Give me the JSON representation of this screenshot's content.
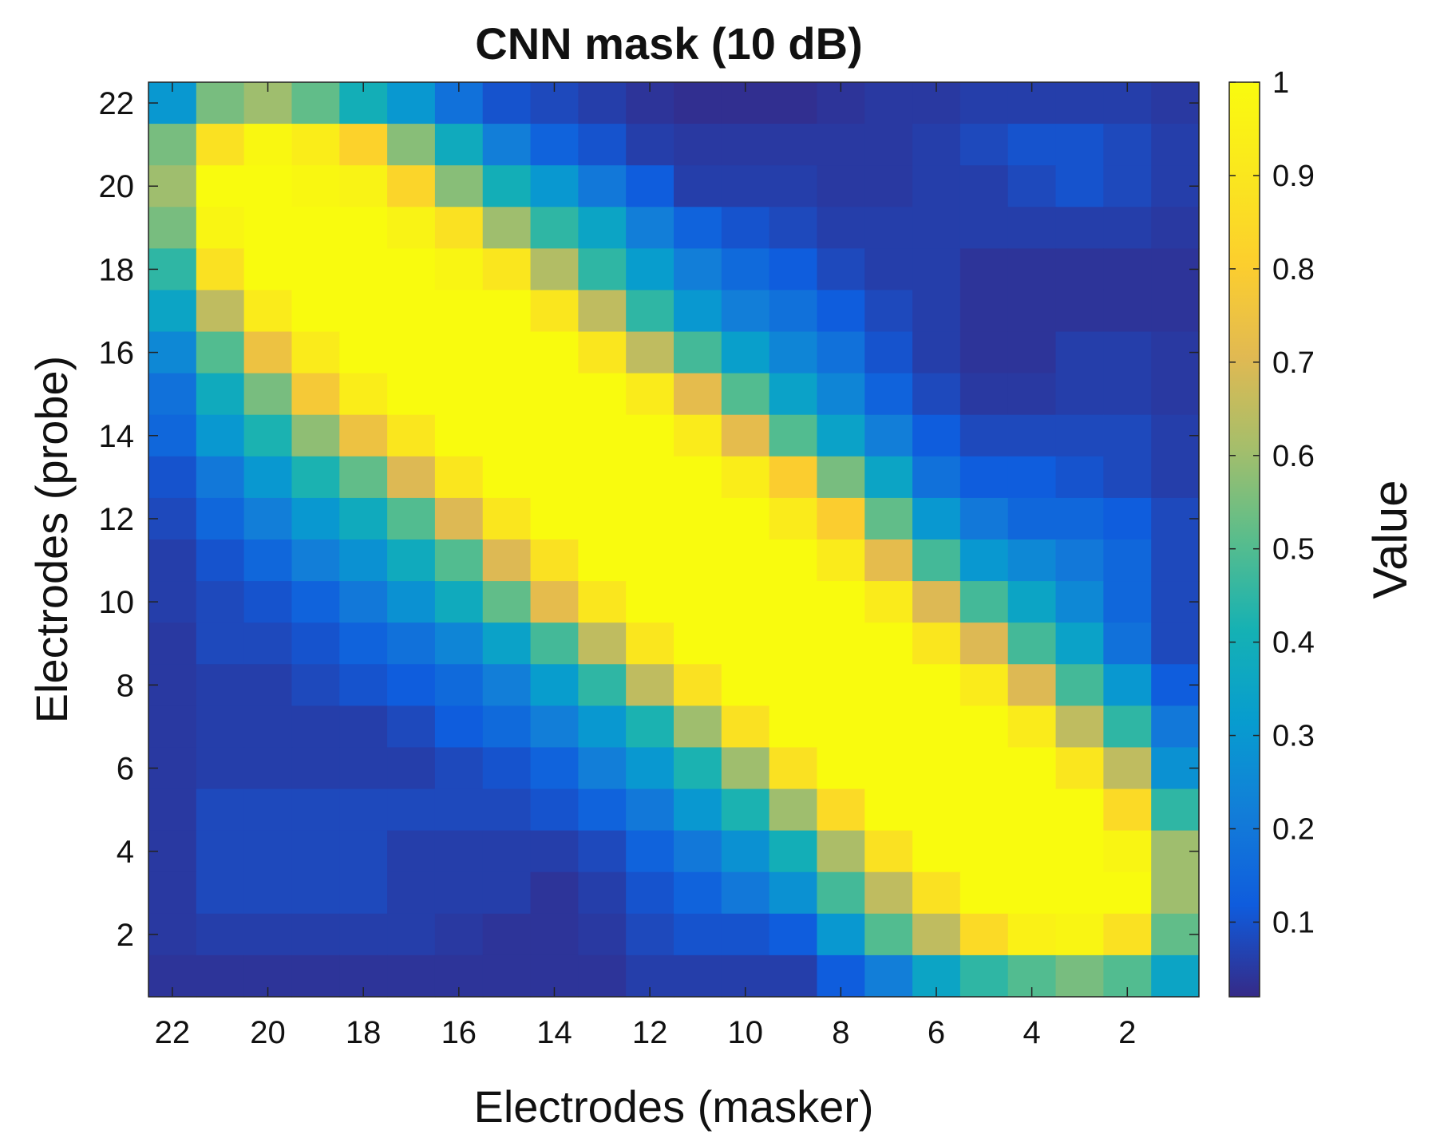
{
  "chart_data": {
    "type": "heatmap",
    "title": "CNN mask (10 dB)",
    "xlabel": "Electrodes (masker)",
    "ylabel": "Electrodes (probe)",
    "colorbar_label": "Value",
    "x_categories": [
      22,
      21,
      20,
      19,
      18,
      17,
      16,
      15,
      14,
      13,
      12,
      11,
      10,
      9,
      8,
      7,
      6,
      5,
      4,
      3,
      2,
      1
    ],
    "y_categories": [
      22,
      21,
      20,
      19,
      18,
      17,
      16,
      15,
      14,
      13,
      12,
      11,
      10,
      9,
      8,
      7,
      6,
      5,
      4,
      3,
      2,
      1
    ],
    "x_ticks": [
      22,
      20,
      18,
      16,
      14,
      12,
      10,
      8,
      6,
      4,
      2
    ],
    "y_ticks": [
      22,
      20,
      18,
      16,
      14,
      12,
      10,
      8,
      6,
      4,
      2
    ],
    "colorbar_ticks": [
      0.1,
      0.2,
      0.3,
      0.4,
      0.5,
      0.6,
      0.7,
      0.8,
      0.9,
      1
    ],
    "colorbar_range": [
      0.02,
      1
    ],
    "colormap": "parula",
    "matrix": [
      [
        0.3,
        0.55,
        0.6,
        0.52,
        0.4,
        0.3,
        0.18,
        0.1,
        0.08,
        0.06,
        0.04,
        0.03,
        0.03,
        0.03,
        0.04,
        0.05,
        0.05,
        0.06,
        0.06,
        0.06,
        0.06,
        0.05
      ],
      [
        0.55,
        0.88,
        0.98,
        0.93,
        0.82,
        0.57,
        0.38,
        0.22,
        0.14,
        0.1,
        0.06,
        0.05,
        0.05,
        0.05,
        0.05,
        0.05,
        0.06,
        0.08,
        0.1,
        0.1,
        0.08,
        0.06
      ],
      [
        0.6,
        1.0,
        1.0,
        0.98,
        0.96,
        0.83,
        0.57,
        0.4,
        0.3,
        0.2,
        0.12,
        0.06,
        0.06,
        0.06,
        0.05,
        0.05,
        0.06,
        0.06,
        0.08,
        0.1,
        0.08,
        0.06
      ],
      [
        0.55,
        0.97,
        1.0,
        1.0,
        1.0,
        0.96,
        0.88,
        0.6,
        0.45,
        0.35,
        0.22,
        0.14,
        0.1,
        0.08,
        0.06,
        0.06,
        0.06,
        0.06,
        0.06,
        0.06,
        0.06,
        0.05
      ],
      [
        0.45,
        0.88,
        1.0,
        1.0,
        1.0,
        1.0,
        0.97,
        0.9,
        0.63,
        0.45,
        0.32,
        0.22,
        0.16,
        0.12,
        0.08,
        0.06,
        0.06,
        0.04,
        0.04,
        0.04,
        0.04,
        0.04
      ],
      [
        0.35,
        0.65,
        0.92,
        1.0,
        1.0,
        1.0,
        1.0,
        1.0,
        0.9,
        0.65,
        0.45,
        0.3,
        0.22,
        0.18,
        0.12,
        0.08,
        0.06,
        0.04,
        0.04,
        0.04,
        0.04,
        0.04
      ],
      [
        0.25,
        0.5,
        0.75,
        0.92,
        1.0,
        1.0,
        1.0,
        1.0,
        1.0,
        0.9,
        0.65,
        0.48,
        0.33,
        0.24,
        0.18,
        0.1,
        0.06,
        0.04,
        0.04,
        0.06,
        0.06,
        0.05
      ],
      [
        0.18,
        0.38,
        0.55,
        0.78,
        0.93,
        1.0,
        1.0,
        1.0,
        1.0,
        1.0,
        0.92,
        0.72,
        0.5,
        0.34,
        0.24,
        0.14,
        0.08,
        0.05,
        0.05,
        0.06,
        0.06,
        0.05
      ],
      [
        0.15,
        0.3,
        0.42,
        0.58,
        0.75,
        0.9,
        1.0,
        1.0,
        1.0,
        1.0,
        1.0,
        0.92,
        0.72,
        0.5,
        0.34,
        0.22,
        0.12,
        0.08,
        0.08,
        0.08,
        0.08,
        0.06
      ],
      [
        0.1,
        0.2,
        0.3,
        0.42,
        0.52,
        0.7,
        0.9,
        1.0,
        1.0,
        1.0,
        1.0,
        1.0,
        0.93,
        0.8,
        0.55,
        0.35,
        0.18,
        0.12,
        0.12,
        0.1,
        0.08,
        0.06
      ],
      [
        0.08,
        0.15,
        0.22,
        0.3,
        0.38,
        0.5,
        0.7,
        0.9,
        1.0,
        1.0,
        1.0,
        1.0,
        1.0,
        0.92,
        0.8,
        0.52,
        0.3,
        0.2,
        0.15,
        0.15,
        0.12,
        0.08
      ],
      [
        0.06,
        0.1,
        0.15,
        0.22,
        0.28,
        0.38,
        0.5,
        0.7,
        0.88,
        1.0,
        1.0,
        1.0,
        1.0,
        1.0,
        0.92,
        0.72,
        0.48,
        0.3,
        0.25,
        0.2,
        0.15,
        0.08
      ],
      [
        0.06,
        0.08,
        0.1,
        0.14,
        0.2,
        0.28,
        0.38,
        0.52,
        0.72,
        0.9,
        1.0,
        1.0,
        1.0,
        1.0,
        1.0,
        0.92,
        0.7,
        0.48,
        0.35,
        0.25,
        0.15,
        0.08
      ],
      [
        0.05,
        0.08,
        0.08,
        0.1,
        0.14,
        0.18,
        0.24,
        0.34,
        0.48,
        0.65,
        0.9,
        1.0,
        1.0,
        1.0,
        1.0,
        1.0,
        0.9,
        0.7,
        0.48,
        0.34,
        0.18,
        0.08
      ],
      [
        0.05,
        0.06,
        0.06,
        0.08,
        0.1,
        0.12,
        0.16,
        0.22,
        0.32,
        0.45,
        0.65,
        0.88,
        1.0,
        1.0,
        1.0,
        1.0,
        1.0,
        0.92,
        0.7,
        0.48,
        0.3,
        0.12
      ],
      [
        0.05,
        0.06,
        0.06,
        0.06,
        0.06,
        0.08,
        0.12,
        0.16,
        0.22,
        0.3,
        0.42,
        0.6,
        0.88,
        1.0,
        1.0,
        1.0,
        1.0,
        1.0,
        0.92,
        0.65,
        0.45,
        0.2
      ],
      [
        0.05,
        0.06,
        0.06,
        0.06,
        0.06,
        0.06,
        0.08,
        0.1,
        0.14,
        0.22,
        0.3,
        0.42,
        0.6,
        0.88,
        1.0,
        1.0,
        1.0,
        1.0,
        1.0,
        0.9,
        0.65,
        0.28
      ],
      [
        0.05,
        0.08,
        0.08,
        0.08,
        0.08,
        0.08,
        0.08,
        0.08,
        0.1,
        0.14,
        0.2,
        0.3,
        0.42,
        0.6,
        0.85,
        1.0,
        1.0,
        1.0,
        1.0,
        1.0,
        0.85,
        0.45
      ],
      [
        0.05,
        0.08,
        0.08,
        0.08,
        0.08,
        0.06,
        0.06,
        0.06,
        0.06,
        0.08,
        0.14,
        0.2,
        0.28,
        0.4,
        0.62,
        0.88,
        1.0,
        1.0,
        1.0,
        1.0,
        0.97,
        0.6
      ],
      [
        0.05,
        0.08,
        0.08,
        0.08,
        0.08,
        0.06,
        0.06,
        0.06,
        0.04,
        0.06,
        0.1,
        0.14,
        0.2,
        0.28,
        0.48,
        0.65,
        0.88,
        1.0,
        1.0,
        1.0,
        1.0,
        0.6
      ],
      [
        0.05,
        0.06,
        0.06,
        0.06,
        0.06,
        0.06,
        0.05,
        0.04,
        0.04,
        0.05,
        0.08,
        0.1,
        0.1,
        0.12,
        0.3,
        0.5,
        0.65,
        0.85,
        0.95,
        0.97,
        0.88,
        0.52
      ],
      [
        0.04,
        0.04,
        0.04,
        0.04,
        0.04,
        0.04,
        0.04,
        0.04,
        0.04,
        0.04,
        0.06,
        0.06,
        0.06,
        0.06,
        0.12,
        0.22,
        0.35,
        0.45,
        0.5,
        0.55,
        0.5,
        0.35
      ]
    ]
  }
}
